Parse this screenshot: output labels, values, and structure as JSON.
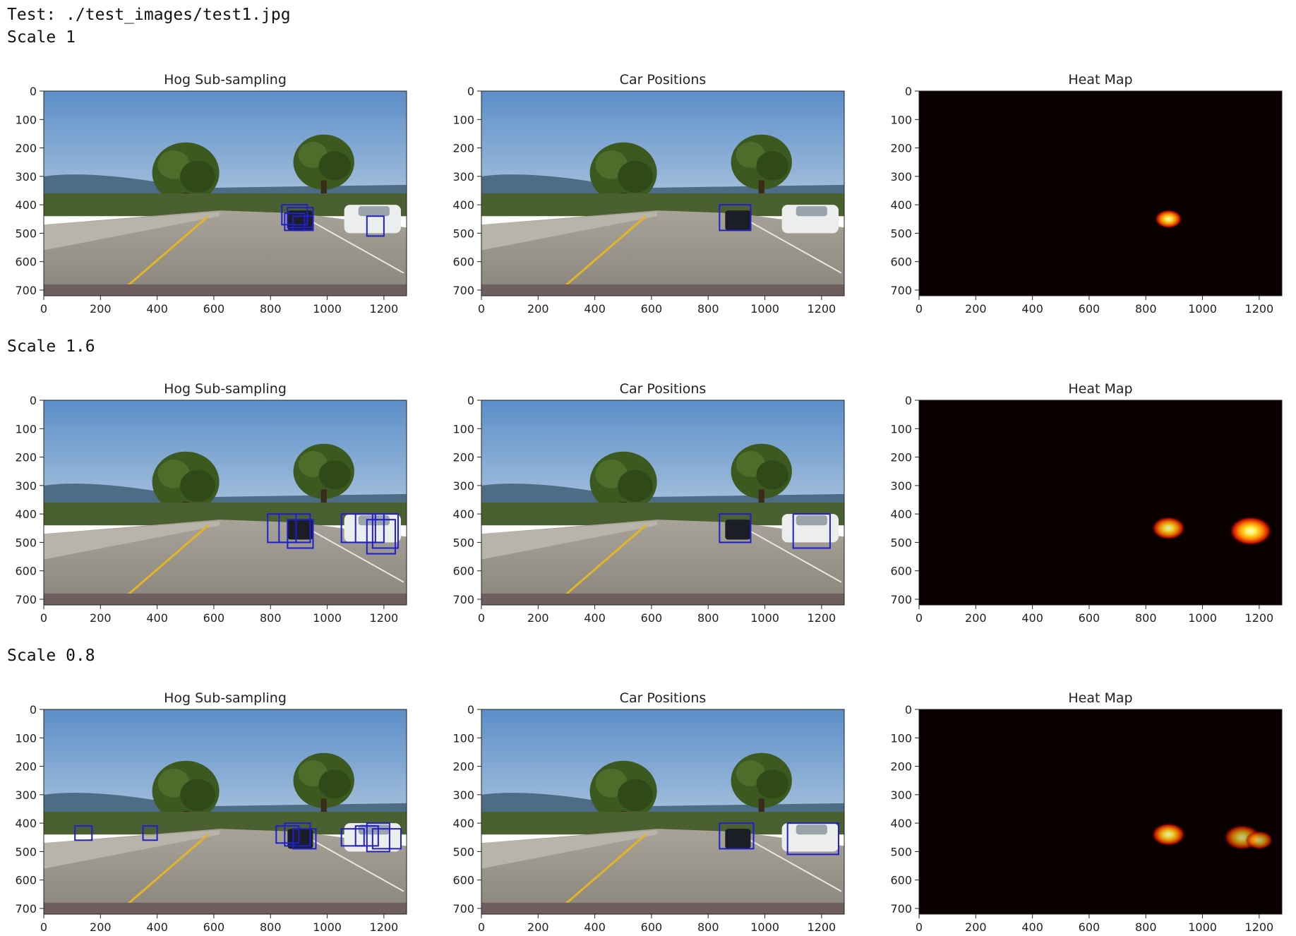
{
  "output": {
    "test_line": "Test: ./test_images/test1.jpg"
  },
  "rows": [
    {
      "scale_label": "Scale 1",
      "panels": [
        {
          "title": "Hog Sub-sampling",
          "kind": "photo",
          "boxes": [
            [
              840,
              400,
              930,
              470
            ],
            [
              860,
              410,
              950,
              480
            ],
            [
              880,
              440,
              950,
              490
            ],
            [
              850,
              430,
              920,
              490
            ],
            [
              1140,
              440,
              1200,
              510
            ]
          ]
        },
        {
          "title": "Car Positions",
          "kind": "photo",
          "boxes": [
            [
              840,
              400,
              950,
              490
            ]
          ]
        },
        {
          "title": "Heat Map",
          "kind": "heat",
          "blobs": [
            {
              "x": 880,
              "y": 450,
              "r": 45,
              "i": 0.95
            }
          ]
        }
      ]
    },
    {
      "scale_label": "Scale 1.6",
      "panels": [
        {
          "title": "Hog Sub-sampling",
          "kind": "photo",
          "boxes": [
            [
              790,
              400,
              890,
              500
            ],
            [
              830,
              400,
              940,
              500
            ],
            [
              860,
              420,
              950,
              520
            ],
            [
              1050,
              400,
              1170,
              500
            ],
            [
              1100,
              400,
              1200,
              500
            ],
            [
              1140,
              420,
              1240,
              540
            ],
            [
              1160,
              400,
              1250,
              520
            ]
          ]
        },
        {
          "title": "Car Positions",
          "kind": "photo",
          "boxes": [
            [
              840,
              400,
              950,
              500
            ],
            [
              1100,
              400,
              1230,
              520
            ]
          ]
        },
        {
          "title": "Heat Map",
          "kind": "heat",
          "blobs": [
            {
              "x": 880,
              "y": 450,
              "r": 55,
              "i": 0.9
            },
            {
              "x": 1170,
              "y": 460,
              "r": 70,
              "i": 1.0
            }
          ]
        }
      ]
    },
    {
      "scale_label": "Scale 0.8",
      "panels": [
        {
          "title": "Hog Sub-sampling",
          "kind": "photo",
          "boxes": [
            [
              110,
              410,
              170,
              460
            ],
            [
              350,
              410,
              400,
              460
            ],
            [
              820,
              410,
              900,
              470
            ],
            [
              850,
              400,
              940,
              480
            ],
            [
              880,
              420,
              960,
              490
            ],
            [
              1050,
              420,
              1130,
              480
            ],
            [
              1100,
              410,
              1180,
              480
            ],
            [
              1140,
              400,
              1220,
              500
            ],
            [
              1160,
              420,
              1260,
              490
            ]
          ]
        },
        {
          "title": "Car Positions",
          "kind": "photo",
          "boxes": [
            [
              840,
              400,
              960,
              490
            ],
            [
              1080,
              400,
              1260,
              510
            ]
          ]
        },
        {
          "title": "Heat Map",
          "kind": "heat",
          "blobs": [
            {
              "x": 880,
              "y": 440,
              "r": 55,
              "i": 0.9
            },
            {
              "x": 1140,
              "y": 450,
              "r": 60,
              "i": 0.75
            },
            {
              "x": 1200,
              "y": 460,
              "r": 45,
              "i": 0.7
            }
          ]
        }
      ]
    }
  ],
  "axes": {
    "x_ticks": [
      "0",
      "200",
      "400",
      "600",
      "800",
      "1000",
      "1200"
    ],
    "y_ticks": [
      "0",
      "100",
      "200",
      "300",
      "400",
      "500",
      "600",
      "700"
    ],
    "x_max": 1280,
    "y_max": 720
  },
  "colors": {
    "box": "#1f1fd0",
    "heat_bg": "#0b0000",
    "sky": "#5d8dc6",
    "road": "#9c968c"
  }
}
